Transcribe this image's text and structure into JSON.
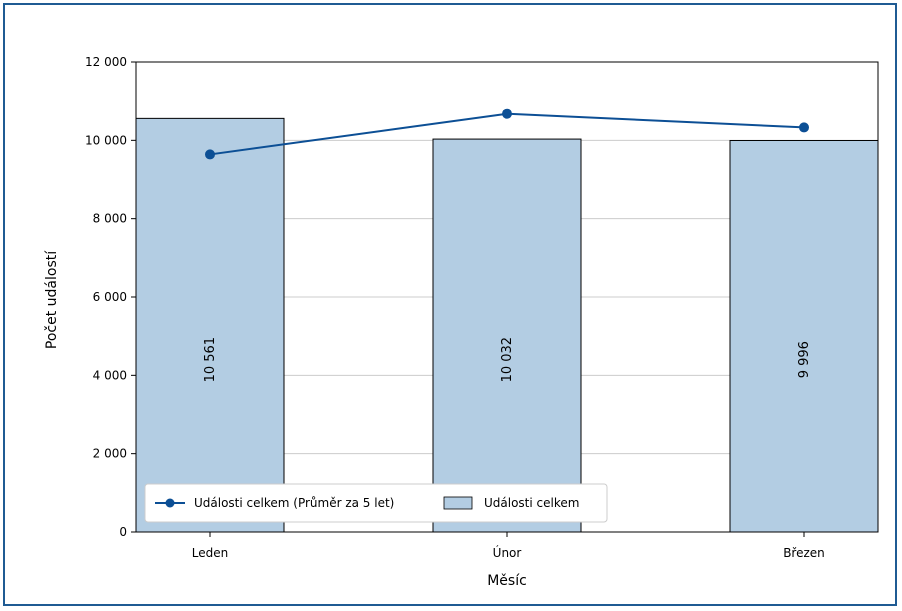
{
  "chart_data": {
    "type": "bar",
    "categories": [
      "Leden",
      "Únor",
      "Březen"
    ],
    "series": [
      {
        "name": "Události celkem",
        "kind": "bar",
        "values": [
          10561,
          10032,
          9996
        ],
        "labels": [
          "10 561",
          "10 032",
          "9 996"
        ],
        "color": "#b3cde3"
      },
      {
        "name": "Události celkem (Průměr za 5 let)",
        "kind": "line",
        "values": [
          9640,
          10680,
          10330
        ],
        "color": "#0c4f95"
      }
    ],
    "xlabel": "Měsíc",
    "ylabel": "Počet událostí",
    "ylim": [
      0,
      12000
    ],
    "yticks": [
      0,
      2000,
      4000,
      6000,
      8000,
      10000,
      12000
    ],
    "ytick_labels": [
      "0",
      "2 000",
      "4 000",
      "6 000",
      "8 000",
      "10 000",
      "12 000"
    ],
    "grid": "horizontal",
    "legend_position": "bottom-left"
  },
  "colors": {
    "frame": "#1f5b93",
    "grid": "#cccccc"
  }
}
